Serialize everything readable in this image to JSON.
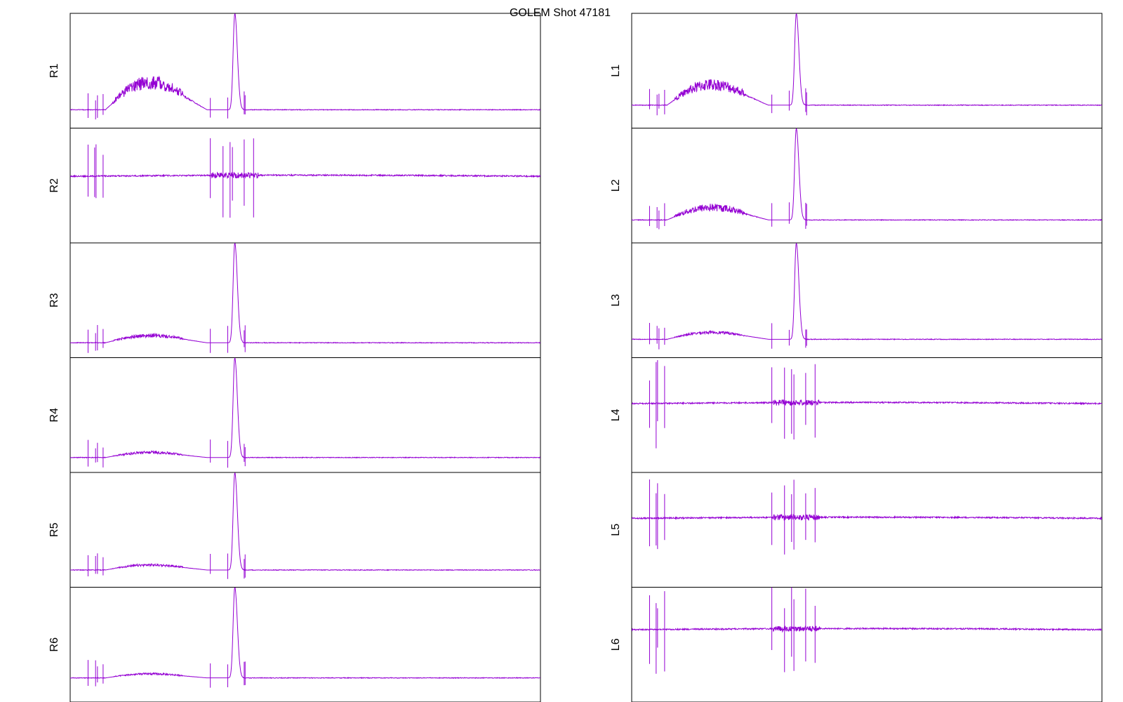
{
  "chart_data": {
    "type": "line",
    "title": "GOLEM Shot 47181",
    "line_color": "#9400d3",
    "frame_color": "#000000",
    "background": "#ffffff",
    "grid": false,
    "axis_ticks": false,
    "x_range": [
      0,
      1
    ],
    "y_range": [
      0,
      1
    ],
    "columns": [
      {
        "panels": [
          {
            "label": "R1",
            "kind": "peak",
            "baseline": 0.84,
            "burst_amp": 0.27,
            "burst_noise": 0.07,
            "peak_height": 0.84
          },
          {
            "label": "R2",
            "kind": "noise",
            "baseline": 0.42
          },
          {
            "label": "R3",
            "kind": "peak",
            "baseline": 0.87,
            "burst_amp": 0.07,
            "burst_noise": 0.02,
            "peak_height": 0.87
          },
          {
            "label": "R4",
            "kind": "peak",
            "baseline": 0.87,
            "burst_amp": 0.05,
            "burst_noise": 0.015,
            "peak_height": 0.87
          },
          {
            "label": "R5",
            "kind": "peak",
            "baseline": 0.85,
            "burst_amp": 0.05,
            "burst_noise": 0.012,
            "peak_height": 0.85
          },
          {
            "label": "R6",
            "kind": "peak",
            "baseline": 0.79,
            "burst_amp": 0.04,
            "burst_noise": 0.01,
            "peak_height": 0.79
          }
        ]
      },
      {
        "panels": [
          {
            "label": "L1",
            "kind": "peak",
            "baseline": 0.8,
            "burst_amp": 0.2,
            "burst_noise": 0.06,
            "peak_height": 0.8
          },
          {
            "label": "L2",
            "kind": "peak",
            "baseline": 0.8,
            "burst_amp": 0.12,
            "burst_noise": 0.04,
            "peak_height": 0.8
          },
          {
            "label": "L3",
            "kind": "peak",
            "baseline": 0.84,
            "burst_amp": 0.07,
            "burst_noise": 0.015,
            "peak_height": 0.84
          },
          {
            "label": "L4",
            "kind": "noise",
            "baseline": 0.4
          },
          {
            "label": "L5",
            "kind": "noise",
            "baseline": 0.4
          },
          {
            "label": "L6",
            "kind": "noise",
            "baseline": 0.37
          }
        ]
      }
    ]
  }
}
